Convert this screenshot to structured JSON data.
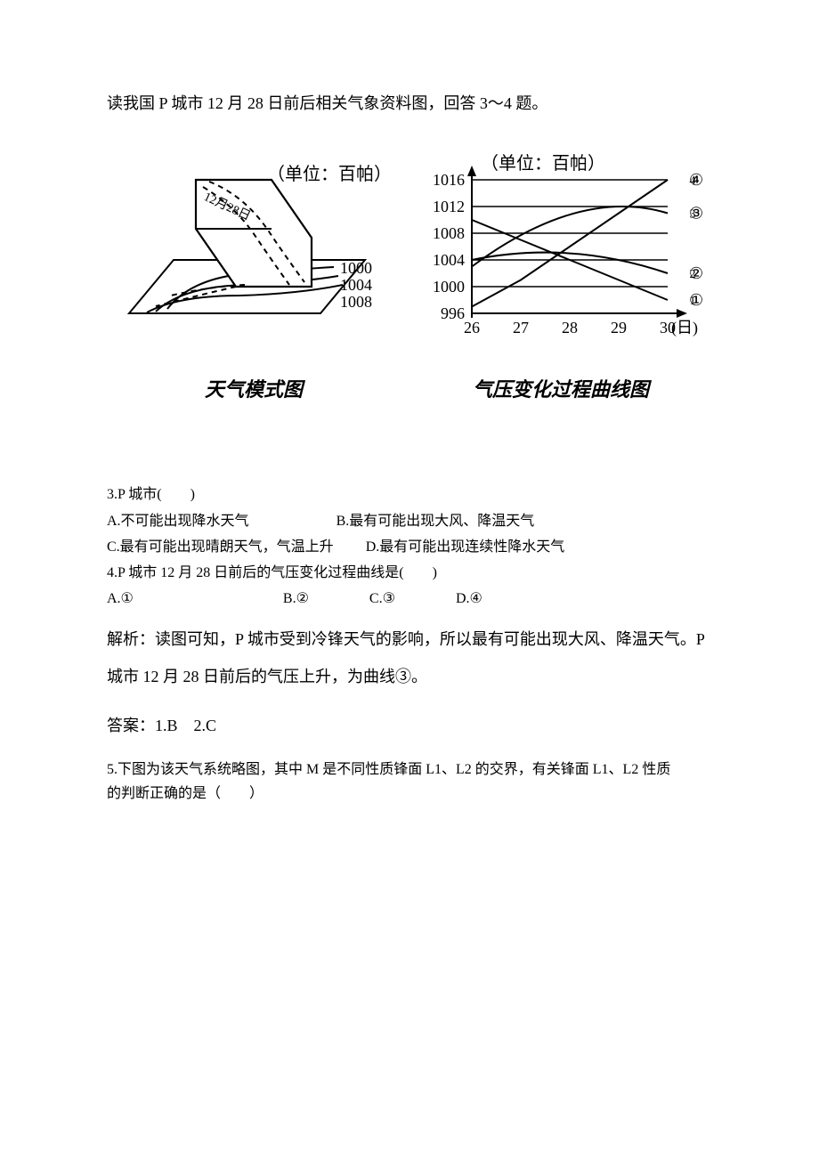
{
  "intro": "读我国 P 城市 12 月 28 日前后相关气象资料图，回答 3～4 题。",
  "figure1": {
    "caption": "天气模式图",
    "unit_label": "（单位：百帕）",
    "date_label": "12月28日",
    "isobars": [
      "1000",
      "1004",
      "1008"
    ],
    "stroke": "#000000",
    "bg": "#ffffff",
    "line_width": 2,
    "dash_pattern": "6,5",
    "font_size_unit": 20,
    "font_size_iso": 18
  },
  "figure2": {
    "caption": "气压变化过程曲线图",
    "unit_label": "（单位：百帕）",
    "y_ticks": [
      996,
      1000,
      1004,
      1008,
      1012,
      1016
    ],
    "y_min": 996,
    "y_max": 1016,
    "x_ticks": [
      "26",
      "27",
      "28",
      "29",
      "30"
    ],
    "x_axis_label": "(日)",
    "series_labels": [
      "①",
      "②",
      "③",
      "④"
    ],
    "series": {
      "1": [
        1010,
        1007,
        1004,
        1001,
        998
      ],
      "2": [
        1004,
        1005,
        1004,
        1003,
        1002
      ],
      "3": [
        1003,
        1007,
        1012,
        1013,
        1011
      ],
      "4": [
        997,
        1001,
        1006,
        1011,
        1016
      ]
    },
    "axis_color": "#000000",
    "grid_color": "#000000",
    "curve_color": "#000000",
    "bg": "#ffffff",
    "line_width": 2,
    "font_size_axis": 18,
    "font_size_unit": 20
  },
  "q3": {
    "stem": "3.P 城市(　　)",
    "A": "A.不可能出现降水天气",
    "B": "B.最有可能出现大风、降温天气",
    "C": "C.最有可能出现晴朗天气，气温上升",
    "D": "D.最有可能出现连续性降水天气"
  },
  "q4": {
    "stem": "4.P 城市 12 月 28 日前后的气压变化过程曲线是(　　)",
    "A": "A.①",
    "B": "B.②",
    "C": "C.③",
    "D": "D.④"
  },
  "analysis_label": "解析：",
  "analysis_text": "读图可知，P 城市受到冷锋天气的影响，所以最有可能出现大风、降温天气。P 城市 12 月 28 日前后的气压上升，为曲线③。",
  "answer_label": "答案：",
  "answer_text": "1.B　2.C",
  "q5": {
    "line1": "5.下图为该天气系统略图，其中 M 是不同性质锋面 L1、L2 的交界，有关锋面 L1、L2 性质",
    "line2": "的判断正确的是（　　）"
  }
}
